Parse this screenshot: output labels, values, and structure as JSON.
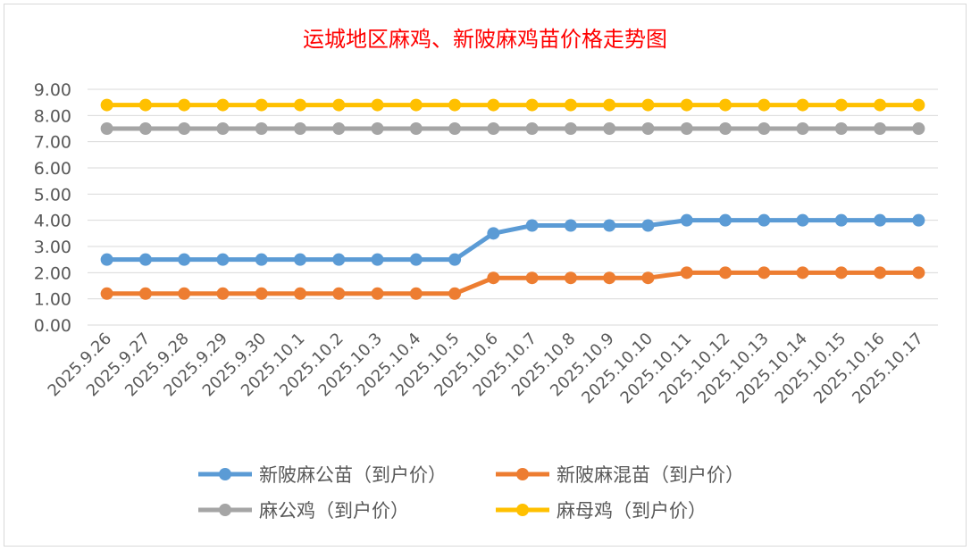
{
  "chart_data": {
    "type": "line",
    "title": "运城地区麻鸡、新陂麻鸡苗价格走势图",
    "xlabel": "",
    "ylabel": "",
    "ylim": [
      0,
      9
    ],
    "yticks": [
      "0.00",
      "1.00",
      "2.00",
      "3.00",
      "4.00",
      "5.00",
      "6.00",
      "7.00",
      "8.00",
      "9.00"
    ],
    "grid": true,
    "legend_position": "bottom",
    "categories": [
      "2025.9.26",
      "2025.9.27",
      "2025.9.28",
      "2025.9.29",
      "2025.9.30",
      "2025.10.1",
      "2025.10.2",
      "2025.10.3",
      "2025.10.4",
      "2025.10.5",
      "2025.10.6",
      "2025.10.7",
      "2025.10.8",
      "2025.10.9",
      "2025.10.10",
      "2025.10.11",
      "2025.10.12",
      "2025.10.13",
      "2025.10.14",
      "2025.10.15",
      "2025.10.16",
      "2025.10.17"
    ],
    "series": [
      {
        "name": "新陂麻公苗（到户价）",
        "color": "#5b9bd5",
        "values": [
          2.5,
          2.5,
          2.5,
          2.5,
          2.5,
          2.5,
          2.5,
          2.5,
          2.5,
          2.5,
          3.5,
          3.8,
          3.8,
          3.8,
          3.8,
          4.0,
          4.0,
          4.0,
          4.0,
          4.0,
          4.0,
          4.0
        ]
      },
      {
        "name": "新陂麻混苗（到户价）",
        "color": "#ed7d31",
        "values": [
          1.2,
          1.2,
          1.2,
          1.2,
          1.2,
          1.2,
          1.2,
          1.2,
          1.2,
          1.2,
          1.8,
          1.8,
          1.8,
          1.8,
          1.8,
          2.0,
          2.0,
          2.0,
          2.0,
          2.0,
          2.0,
          2.0
        ]
      },
      {
        "name": "麻公鸡（到户价）",
        "color": "#a5a5a5",
        "values": [
          7.5,
          7.5,
          7.5,
          7.5,
          7.5,
          7.5,
          7.5,
          7.5,
          7.5,
          7.5,
          7.5,
          7.5,
          7.5,
          7.5,
          7.5,
          7.5,
          7.5,
          7.5,
          7.5,
          7.5,
          7.5,
          7.5
        ]
      },
      {
        "name": "麻母鸡（到户价）",
        "color": "#ffc000",
        "values": [
          8.4,
          8.4,
          8.4,
          8.4,
          8.4,
          8.4,
          8.4,
          8.4,
          8.4,
          8.4,
          8.4,
          8.4,
          8.4,
          8.4,
          8.4,
          8.4,
          8.4,
          8.4,
          8.4,
          8.4,
          8.4,
          8.4
        ]
      }
    ]
  }
}
